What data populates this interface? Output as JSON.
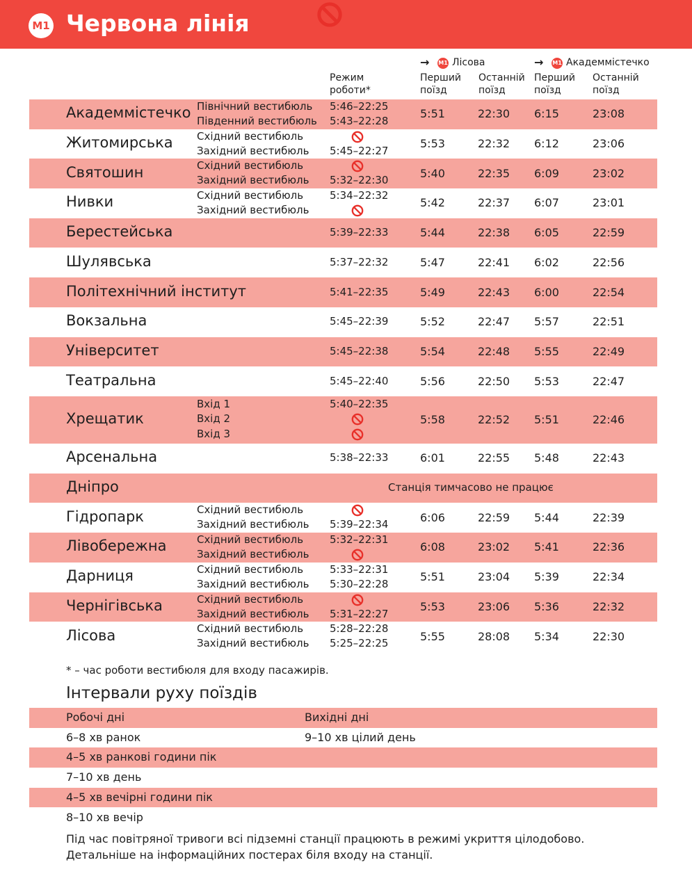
{
  "header": {
    "badge": "M1",
    "title": "Червона лінія"
  },
  "columns": {
    "mode": "Режим\nроботи*",
    "directions": [
      {
        "badge": "M1",
        "name": "Лісова",
        "first": "Перший\nпоїзд",
        "last": "Останній\nпоїзд"
      },
      {
        "badge": "M1",
        "name": "Академмістечко",
        "first": "Перший\nпоїзд",
        "last": "Останній\nпоїзд"
      }
    ]
  },
  "stations": [
    {
      "name": "Академмістечко",
      "entrances": [
        {
          "label": "Північний вестибюль",
          "hours": "5:46–22:25"
        },
        {
          "label": "Південний вестибюль",
          "hours": "5:43–22:28"
        }
      ],
      "times": [
        "5:51",
        "22:30",
        "6:15",
        "23:08"
      ]
    },
    {
      "name": "Житомирська",
      "entrances": [
        {
          "label": "Східний вестибюль",
          "closed": true
        },
        {
          "label": "Західний вестибюль",
          "hours": "5:45–22:27"
        }
      ],
      "times": [
        "5:53",
        "22:32",
        "6:12",
        "23:06"
      ]
    },
    {
      "name": "Святошин",
      "entrances": [
        {
          "label": "Східний вестибюль",
          "closed": true
        },
        {
          "label": "Західний вестибюль",
          "hours": "5:32–22:30"
        }
      ],
      "times": [
        "5:40",
        "22:35",
        "6:09",
        "23:02"
      ]
    },
    {
      "name": "Нивки",
      "entrances": [
        {
          "label": "Східний вестибюль",
          "hours": "5:34–22:32"
        },
        {
          "label": "Західний вестибюль",
          "closed": true
        }
      ],
      "times": [
        "5:42",
        "22:37",
        "6:07",
        "23:01"
      ]
    },
    {
      "name": "Берестейська",
      "entrances": [
        {
          "hours": "5:39–22:33"
        }
      ],
      "times": [
        "5:44",
        "22:38",
        "6:05",
        "22:59"
      ]
    },
    {
      "name": "Шулявська",
      "entrances": [
        {
          "hours": "5:37–22:32"
        }
      ],
      "times": [
        "5:47",
        "22:41",
        "6:02",
        "22:56"
      ]
    },
    {
      "name": "Політехнічний інститут",
      "entrances": [
        {
          "hours": "5:41–22:35"
        }
      ],
      "times": [
        "5:49",
        "22:43",
        "6:00",
        "22:54"
      ]
    },
    {
      "name": "Вокзальна",
      "entrances": [
        {
          "hours": "5:45–22:39"
        }
      ],
      "times": [
        "5:52",
        "22:47",
        "5:57",
        "22:51"
      ]
    },
    {
      "name": "Університет",
      "entrances": [
        {
          "hours": "5:45–22:38"
        }
      ],
      "times": [
        "5:54",
        "22:48",
        "5:55",
        "22:49"
      ]
    },
    {
      "name": "Театральна",
      "entrances": [
        {
          "hours": "5:45–22:40"
        }
      ],
      "times": [
        "5:56",
        "22:50",
        "5:53",
        "22:47"
      ]
    },
    {
      "name": "Хрещатик",
      "entrances": [
        {
          "label": "Вхід 1",
          "hours": "5:40–22:35"
        },
        {
          "label": "Вхід 2",
          "closed": true
        },
        {
          "label": "Вхід 3",
          "closed": true
        }
      ],
      "times": [
        "5:58",
        "22:52",
        "5:51",
        "22:46"
      ]
    },
    {
      "name": "Арсенальна",
      "entrances": [
        {
          "hours": "5:38–22:33"
        }
      ],
      "times": [
        "6:01",
        "22:55",
        "5:48",
        "22:43"
      ]
    },
    {
      "name": "Дніпро",
      "status": "Станція тимчасово не працює"
    },
    {
      "name": "Гідропарк",
      "entrances": [
        {
          "label": "Східний вестибюль",
          "closed": true
        },
        {
          "label": "Західний вестибюль",
          "hours": "5:39–22:34"
        }
      ],
      "times": [
        "6:06",
        "22:59",
        "5:44",
        "22:39"
      ]
    },
    {
      "name": "Лівобережна",
      "entrances": [
        {
          "label": "Східний вестибюль",
          "hours": "5:32–22:31"
        },
        {
          "label": "Західний вестибюль",
          "closed": true
        }
      ],
      "times": [
        "6:08",
        "23:02",
        "5:41",
        "22:36"
      ]
    },
    {
      "name": "Дарниця",
      "entrances": [
        {
          "label": "Східний вестибюль",
          "hours": "5:33–22:31"
        },
        {
          "label": "Західний вестибюль",
          "hours": "5:30–22:28"
        }
      ],
      "times": [
        "5:51",
        "23:04",
        "5:39",
        "22:34"
      ]
    },
    {
      "name": "Чернігівська",
      "entrances": [
        {
          "label": "Східний вестибюль",
          "closed": true
        },
        {
          "label": "Західний вестибюль",
          "hours": "5:31–22:27"
        }
      ],
      "times": [
        "5:53",
        "23:06",
        "5:36",
        "22:32"
      ]
    },
    {
      "name": "Лісова",
      "entrances": [
        {
          "label": "Східний вестибюль",
          "hours": "5:28–22:28"
        },
        {
          "label": "Західний вестибюль",
          "hours": "5:25–22:25"
        }
      ],
      "times": [
        "5:55",
        "28:08",
        "5:34",
        "22:30"
      ]
    }
  ],
  "footnote": "* – час роботи вестибюля для входу пасажирів.",
  "intervals": {
    "title": "Інтервали руху поїздів",
    "headers": [
      "Робочі дні",
      "Вихідні дні"
    ],
    "rows": [
      [
        "6–8 хв ранок",
        "9–10 хв цілий день"
      ],
      [
        "4–5 хв ранкові години пік"
      ],
      [
        "7–10 хв день"
      ],
      [
        "4–5 хв вечірні години пік"
      ],
      [
        "8–10 хв вечір"
      ]
    ]
  },
  "notes": [
    "Під час повітряної тривоги всі підземні станції працюють в режимі укриття цілодобово.",
    "Детальніше на інформаційних постерах біля входу на станції."
  ]
}
